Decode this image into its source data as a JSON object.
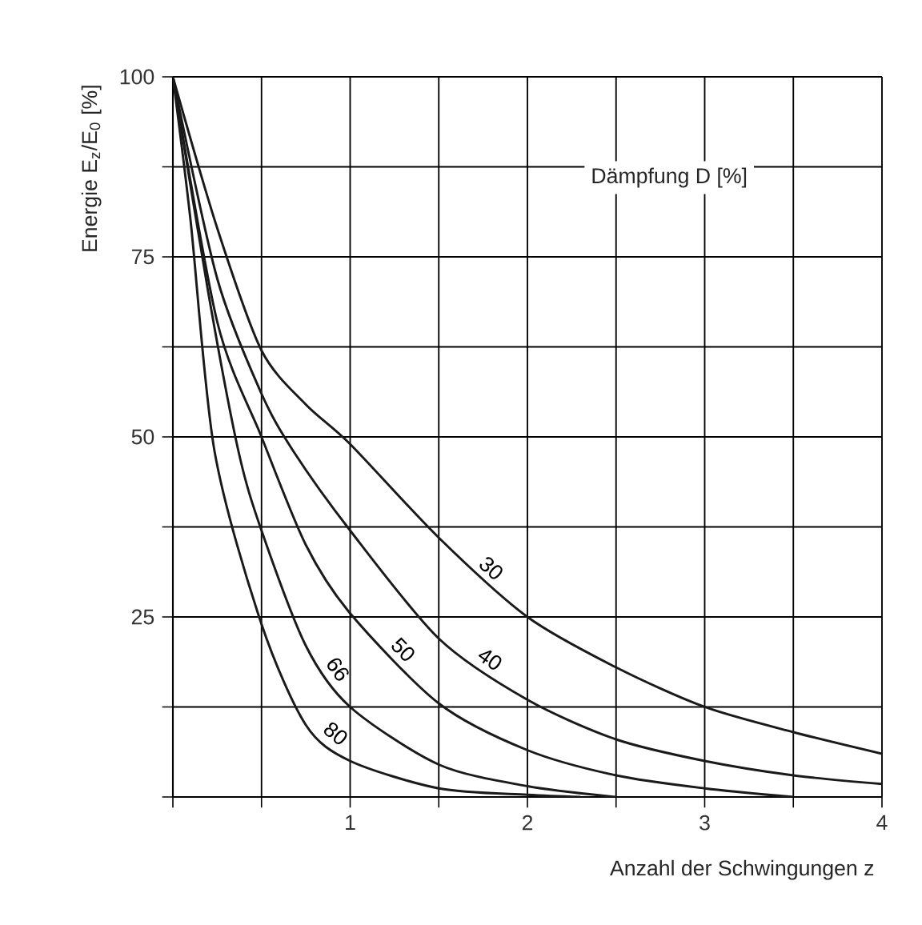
{
  "chart_data": {
    "type": "line",
    "xlabel": "Anzahl der Schwingungen z",
    "ylabel": "Energie E$_{z}$/E$_{0}$ [%]",
    "legend_title": "Dämpfung D [%]",
    "xlim": [
      0,
      4
    ],
    "ylim": [
      0,
      100
    ],
    "xticks": [
      {
        "value": 0,
        "label": null
      },
      {
        "value": 0.5,
        "label": null
      },
      1,
      {
        "value": 1.5,
        "label": null
      },
      2,
      {
        "value": 2.5,
        "label": null
      },
      3,
      {
        "value": 3.5,
        "label": null
      },
      4
    ],
    "yticks": [
      {
        "value": 0,
        "label": null
      },
      {
        "value": 12.5,
        "label": null
      },
      25,
      {
        "value": 37.5,
        "label": null
      },
      50,
      {
        "value": 62.5,
        "label": null
      },
      75,
      {
        "value": 87.5,
        "label": null
      },
      100
    ],
    "grid": true,
    "marker": "none",
    "line_style": "solid",
    "series": [
      {
        "name": "30",
        "color": "#1a1a1a",
        "x": [
          0,
          0.25,
          0.5,
          0.75,
          1,
          1.5,
          2,
          2.5,
          3,
          3.5,
          4
        ],
        "values": [
          100,
          79,
          62,
          54.5,
          49,
          36,
          25,
          18,
          12.5,
          9,
          6
        ]
      },
      {
        "name": "40",
        "color": "#1a1a1a",
        "x": [
          0,
          0.25,
          0.5,
          0.68,
          1,
          1.5,
          2,
          2.5,
          3,
          3.5,
          4
        ],
        "values": [
          100,
          72,
          56,
          48,
          37,
          22,
          13.5,
          8,
          5,
          3,
          1.8
        ]
      },
      {
        "name": "50",
        "color": "#1a1a1a",
        "x": [
          0,
          0.25,
          0.5,
          0.75,
          1,
          1.5,
          2,
          2.5,
          3,
          3.5
        ],
        "values": [
          100,
          66,
          50,
          35,
          25.5,
          13,
          6.5,
          3,
          1.2,
          0
        ]
      },
      {
        "name": "66",
        "color": "#1a1a1a",
        "x": [
          0,
          0.2,
          0.37,
          0.5,
          0.75,
          1,
          1.5,
          2,
          2.5
        ],
        "values": [
          100,
          70,
          48,
          37,
          21,
          12.5,
          4.5,
          1.5,
          0
        ]
      },
      {
        "name": "80",
        "color": "#1a1a1a",
        "x": [
          0,
          0.1,
          0.235,
          0.5,
          0.75,
          1,
          1.5,
          2,
          2.3
        ],
        "values": [
          100,
          80,
          48,
          24,
          10,
          5,
          1.2,
          0.3,
          0
        ]
      }
    ]
  }
}
